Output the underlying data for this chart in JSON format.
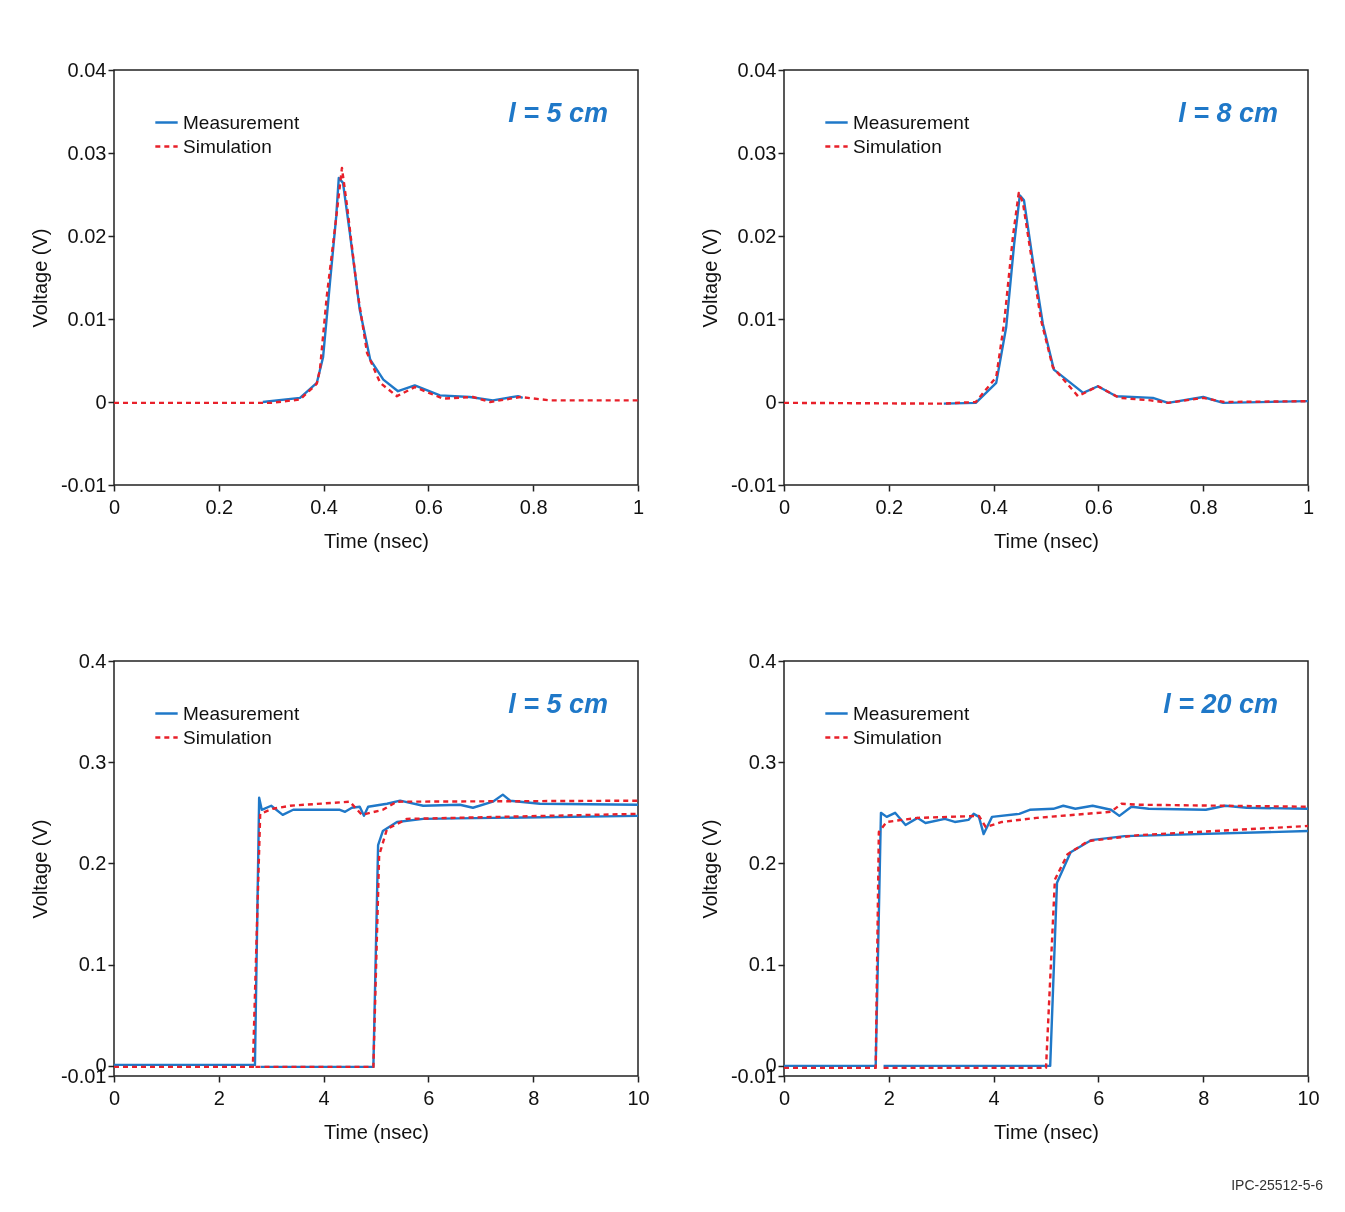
{
  "chart_data": [
    {
      "type": "line",
      "xlabel": "Time (nsec)",
      "ylabel": "Voltage (V)",
      "xlim": [
        0,
        1
      ],
      "xticks": [
        0,
        0.2,
        0.4,
        0.6,
        0.8,
        1
      ],
      "ylim": [
        -0.01,
        0.04
      ],
      "yticks": [
        -0.01,
        0,
        0.01,
        0.02,
        0.03,
        0.04
      ],
      "grid": false,
      "legend": "top left",
      "annotations": [
        "l = 5 cm"
      ],
      "series": [
        {
          "name": "Measurement",
          "color": "#1f78c8",
          "line_style": "solid",
          "x": [
            0.284,
            0.355,
            0.387,
            0.399,
            0.412,
            0.424,
            0.429,
            0.437,
            0.45,
            0.469,
            0.489,
            0.514,
            0.542,
            0.574,
            0.622,
            0.679,
            0.723,
            0.771,
            0.78
          ],
          "values": [
            0,
            0.0005,
            0.0023,
            0.0054,
            0.0143,
            0.0223,
            0.027,
            0.0264,
            0.0204,
            0.0111,
            0.0051,
            0.0027,
            0.0013,
            0.002,
            0.0008,
            0.0006,
            0.0002,
            0.0007,
            0.0005
          ]
        },
        {
          "name": "Simulation",
          "color": "#e8202a",
          "line_style": "dashed",
          "x": [
            0,
            0.3,
            0.355,
            0.387,
            0.393,
            0.406,
            0.422,
            0.435,
            0.445,
            0.464,
            0.483,
            0.508,
            0.54,
            0.574,
            0.628,
            0.685,
            0.718,
            0.775,
            0.832,
            1
          ],
          "values": [
            -0.0001,
            -0.0001,
            0.0003,
            0.0022,
            0.0039,
            0.0127,
            0.0211,
            0.0282,
            0.0235,
            0.0135,
            0.0059,
            0.0023,
            0.0007,
            0.0018,
            0.0004,
            0.0006,
            0,
            0.0006,
            0.0002,
            0.0002
          ]
        }
      ]
    },
    {
      "type": "line",
      "xlabel": "Time (nsec)",
      "ylabel": "Voltage (V)",
      "xlim": [
        0,
        1
      ],
      "xticks": [
        0,
        0.2,
        0.4,
        0.6,
        0.8,
        1
      ],
      "ylim": [
        -0.01,
        0.04
      ],
      "yticks": [
        -0.01,
        0,
        0.01,
        0.02,
        0.03,
        0.04
      ],
      "grid": false,
      "legend": "top left",
      "annotations": [
        "l = 8 cm"
      ],
      "series": [
        {
          "name": "Measurement",
          "color": "#1f78c8",
          "line_style": "solid",
          "x": [
            0.305,
            0.366,
            0.405,
            0.424,
            0.439,
            0.45,
            0.458,
            0.475,
            0.494,
            0.515,
            0.571,
            0.599,
            0.634,
            0.704,
            0.733,
            0.8,
            0.838,
            1
          ],
          "values": [
            -0.0002,
            -0.0001,
            0.0023,
            0.009,
            0.0189,
            0.0249,
            0.0243,
            0.017,
            0.0094,
            0.0039,
            0.0011,
            0.0019,
            0.0007,
            0.0005,
            -0.0001,
            0.0006,
            -0.0001,
            0.0001
          ]
        },
        {
          "name": "Simulation",
          "color": "#e8202a",
          "line_style": "dashed",
          "x": [
            0,
            0.3,
            0.366,
            0.405,
            0.42,
            0.437,
            0.448,
            0.456,
            0.472,
            0.49,
            0.513,
            0.561,
            0.599,
            0.64,
            0.7,
            0.733,
            0.8,
            0.84,
            1
          ],
          "values": [
            -0.0001,
            -0.0002,
            0,
            0.003,
            0.0095,
            0.02,
            0.0252,
            0.024,
            0.0175,
            0.01,
            0.0042,
            0.0007,
            0.0019,
            0.0005,
            0.0002,
            -0.0001,
            0.0005,
            0,
            0.0001
          ]
        }
      ]
    },
    {
      "type": "line",
      "xlabel": "Time (nsec)",
      "ylabel": "Voltage (V)",
      "xlim": [
        0,
        10
      ],
      "xticks": [
        0,
        2,
        4,
        6,
        8,
        10
      ],
      "ylim": [
        -0.01,
        0.4
      ],
      "yticks": [
        -0.01,
        0,
        0.1,
        0.2,
        0.3,
        0.4
      ],
      "grid": false,
      "legend": "top left",
      "annotations": [
        "l = 5 cm"
      ],
      "series": [
        {
          "name": "Measurement",
          "color": "#1f78c8",
          "line_style": "solid",
          "x": [
            0,
            2.69,
            2.77,
            2.82,
            3.0,
            3.22,
            3.42,
            4.31,
            4.41,
            4.54,
            4.69,
            4.77,
            4.85,
            5.21,
            5.46,
            5.9,
            6.6,
            6.85,
            7.23,
            7.42,
            7.56,
            8.13,
            10
          ],
          "values": [
            0.001,
            0.001,
            0.265,
            0.253,
            0.257,
            0.248,
            0.253,
            0.253,
            0.251,
            0.255,
            0.256,
            0.247,
            0.256,
            0.259,
            0.262,
            0.257,
            0.258,
            0.255,
            0.261,
            0.268,
            0.262,
            0.259,
            0.258
          ]
        },
        {
          "name": "Simulation",
          "color": "#e8202a",
          "line_style": "dashed",
          "x": [
            0,
            2.65,
            2.79,
            3.03,
            3.36,
            4.5,
            4.73,
            5.13,
            5.4,
            10
          ],
          "values": [
            -0.001,
            -0.001,
            0.249,
            0.254,
            0.257,
            0.261,
            0.248,
            0.253,
            0.261,
            0.262
          ]
        },
        {
          "color": "#1f78c8",
          "line_style": "solid",
          "x": [
            2.8,
            4.95,
            5.04,
            5.13,
            5.4,
            5.9,
            10
          ],
          "values": [
            -0.001,
            -0.001,
            0.218,
            0.232,
            0.241,
            0.244,
            0.247
          ]
        },
        {
          "color": "#e8202a",
          "line_style": "dashed",
          "x": [
            2.7,
            4.95,
            5.06,
            5.21,
            5.59,
            10
          ],
          "values": [
            -0.001,
            -0.001,
            0.208,
            0.234,
            0.244,
            0.249
          ]
        }
      ]
    },
    {
      "type": "line",
      "xlabel": "Time (nsec)",
      "ylabel": "Voltage (V)",
      "xlim": [
        0,
        10
      ],
      "xticks": [
        0,
        2,
        4,
        6,
        8,
        10
      ],
      "ylim": [
        -0.01,
        0.4
      ],
      "yticks": [
        -0.01,
        0,
        0.1,
        0.2,
        0.3,
        0.4
      ],
      "grid": false,
      "legend": "top left",
      "annotations": [
        "l = 20 cm",
        "IPC-25512-5-6"
      ],
      "series": [
        {
          "name": "Measurement",
          "color": "#1f78c8",
          "line_style": "solid",
          "x": [
            0,
            1.75,
            1.85,
            1.96,
            2.12,
            2.32,
            2.55,
            2.7,
            3.07,
            3.26,
            3.52,
            3.62,
            3.72,
            3.81,
            3.97,
            4.49,
            4.69,
            5.14,
            5.33,
            5.56,
            5.89,
            6.24,
            6.4,
            6.63,
            6.96,
            8.05,
            8.42,
            8.83,
            10
          ],
          "values": [
            0,
            0,
            0.25,
            0.246,
            0.25,
            0.238,
            0.245,
            0.24,
            0.244,
            0.241,
            0.243,
            0.249,
            0.246,
            0.229,
            0.246,
            0.249,
            0.253,
            0.254,
            0.257,
            0.254,
            0.257,
            0.253,
            0.247,
            0.256,
            0.254,
            0.253,
            0.257,
            0.255,
            0.254
          ]
        },
        {
          "name": "Simulation",
          "color": "#e8202a",
          "line_style": "dashed",
          "x": [
            0,
            1.75,
            1.81,
            1.96,
            2.55,
            3.72,
            3.85,
            4.16,
            4.82,
            6.24,
            6.44,
            6.77,
            10
          ],
          "values": [
            -0.002,
            -0.002,
            0.231,
            0.241,
            0.245,
            0.247,
            0.236,
            0.241,
            0.245,
            0.251,
            0.259,
            0.258,
            0.256
          ]
        },
        {
          "color": "#1f78c8",
          "line_style": "solid",
          "x": [
            1.9,
            5.08,
            5.21,
            5.47,
            5.86,
            6.5,
            10
          ],
          "values": [
            0,
            0,
            0.181,
            0.211,
            0.223,
            0.227,
            0.232
          ]
        },
        {
          "color": "#e8202a",
          "line_style": "dashed",
          "x": [
            1.9,
            5.0,
            5.17,
            5.41,
            5.8,
            6.77,
            10
          ],
          "values": [
            -0.002,
            -0.002,
            0.184,
            0.209,
            0.222,
            0.228,
            0.237
          ]
        }
      ]
    }
  ]
}
